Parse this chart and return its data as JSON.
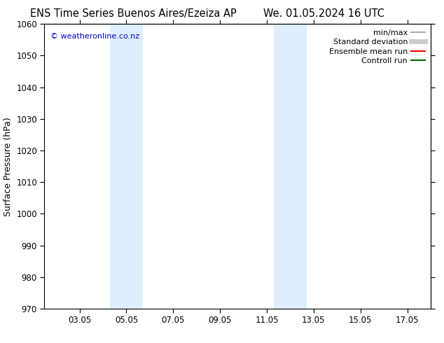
{
  "title_left": "ENS Time Series Buenos Aires/Ezeiza AP",
  "title_right": "We. 01.05.2024 16 UTC",
  "ylabel": "Surface Pressure (hPa)",
  "watermark": "© weatheronline.co.nz",
  "watermark_color": "#0000cc",
  "ylim": [
    970,
    1060
  ],
  "yticks": [
    970,
    980,
    990,
    1000,
    1010,
    1020,
    1030,
    1040,
    1050,
    1060
  ],
  "xlim_start": 1.5,
  "xlim_end": 18.0,
  "xtick_positions": [
    3,
    5,
    7,
    9,
    11,
    13,
    15,
    17
  ],
  "xtick_labels": [
    "03.05",
    "05.05",
    "07.05",
    "09.05",
    "11.05",
    "13.05",
    "15.05",
    "17.05"
  ],
  "shaded_bands": [
    {
      "xmin": 4.3,
      "xmax": 5.7
    },
    {
      "xmin": 11.3,
      "xmax": 12.7
    }
  ],
  "band_color": "#ddeeff",
  "legend_entries": [
    {
      "label": "min/max",
      "color": "#999999",
      "lw": 1.2
    },
    {
      "label": "Standard deviation",
      "color": "#cccccc",
      "lw": 5.0
    },
    {
      "label": "Ensemble mean run",
      "color": "#ff0000",
      "lw": 1.5
    },
    {
      "label": "Controll run",
      "color": "#006600",
      "lw": 1.5
    }
  ],
  "bg_color": "#ffffff",
  "title_fontsize": 10.5,
  "tick_fontsize": 8.5,
  "ylabel_fontsize": 9,
  "legend_fontsize": 8,
  "watermark_fontsize": 8
}
